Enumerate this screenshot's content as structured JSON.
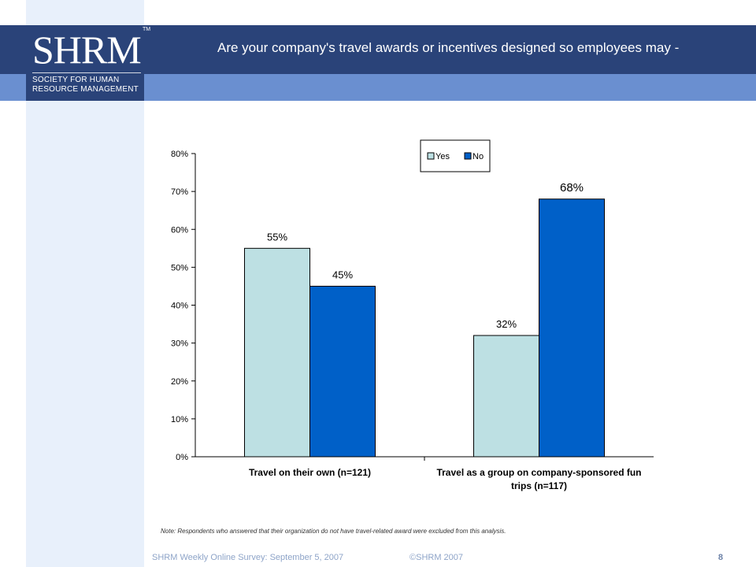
{
  "brand": {
    "logo_letters": "SHRM",
    "trademark": "TM",
    "logo_subtitle": "SOCIETY FOR HUMAN\nRESOURCE MANAGEMENT"
  },
  "slide": {
    "title": "Are your company's travel awards or incentives designed so employees may -"
  },
  "chart_data": {
    "type": "bar",
    "categories": [
      "Travel on their own (n=121)",
      "Travel as a group on company-sponsored fun trips (n=117)"
    ],
    "category_lines": [
      [
        "Travel on their own (n=121)"
      ],
      [
        "Travel as a group on company-sponsored fun",
        "trips (n=117)"
      ]
    ],
    "series": [
      {
        "name": "Yes",
        "values": [
          55,
          32
        ],
        "labels": [
          "55%",
          "32%"
        ],
        "color": "#bde0e3"
      },
      {
        "name": "No",
        "values": [
          45,
          68
        ],
        "labels": [
          "45%",
          "68%"
        ],
        "color": "#0060c8"
      }
    ],
    "ylim": [
      0,
      80
    ],
    "yticks": [
      0,
      10,
      20,
      30,
      40,
      50,
      60,
      70,
      80
    ],
    "ytick_labels": [
      "0%",
      "10%",
      "20%",
      "30%",
      "40%",
      "50%",
      "60%",
      "70%",
      "80%"
    ],
    "legend_position": "top-right",
    "grid": false
  },
  "footer": {
    "note": "Note: Respondents who answered that their organization do not have travel-related award were excluded from this analysis.",
    "survey": "SHRM Weekly Online Survey: September 5, 2007",
    "copyright": "©SHRM 2007",
    "page": "8"
  }
}
